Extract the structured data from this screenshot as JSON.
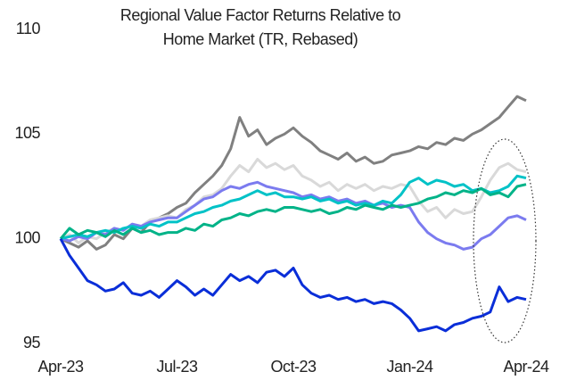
{
  "chart_data": {
    "type": "line",
    "title": [
      "Regional Value Factor Returns Relative to",
      "Home Market (TR, Rebased)"
    ],
    "categories": [
      "Apr-23",
      null,
      null,
      null,
      null,
      null,
      null,
      null,
      null,
      null,
      null,
      null,
      null,
      "Jul-23",
      null,
      null,
      null,
      null,
      null,
      null,
      null,
      null,
      null,
      null,
      null,
      null,
      "Oct-23",
      null,
      null,
      null,
      null,
      null,
      null,
      null,
      null,
      null,
      null,
      null,
      null,
      "Jan-24",
      null,
      null,
      null,
      null,
      null,
      null,
      null,
      null,
      null,
      null,
      null,
      null,
      "Apr-24"
    ],
    "series": [
      {
        "color": "#808080",
        "values": [
          100,
          99.8,
          99.6,
          99.9,
          99.5,
          99.7,
          100.2,
          100.0,
          100.5,
          100.3,
          100.8,
          101.0,
          101.2,
          101.5,
          101.7,
          102.2,
          102.6,
          103.0,
          103.5,
          104.3,
          105.8,
          104.9,
          105.2,
          104.5,
          104.8,
          105.0,
          105.3,
          104.9,
          104.6,
          104.2,
          104.0,
          103.8,
          104.1,
          103.7,
          103.9,
          103.6,
          103.7,
          104.0,
          104.1,
          104.2,
          104.4,
          104.3,
          104.6,
          104.5,
          104.8,
          104.7,
          105.0,
          105.2,
          105.5,
          105.8,
          106.3,
          106.8,
          106.6
        ]
      },
      {
        "color": "#d9d9d9",
        "values": [
          100,
          100.2,
          99.8,
          100.1,
          100.0,
          100.3,
          100.5,
          100.4,
          100.7,
          100.6,
          100.9,
          101.0,
          101.1,
          101.0,
          101.4,
          101.6,
          102.0,
          102.1,
          102.4,
          103.0,
          103.5,
          103.2,
          103.8,
          103.4,
          103.6,
          103.3,
          103.5,
          103.0,
          102.8,
          102.5,
          102.7,
          102.3,
          102.6,
          102.4,
          102.6,
          102.3,
          102.5,
          102.4,
          102.6,
          102.5,
          101.8,
          101.3,
          101.5,
          101.0,
          101.4,
          101.2,
          101.3,
          102.0,
          102.8,
          103.4,
          103.6,
          103.3,
          103.2
        ]
      },
      {
        "color": "#7b7bef",
        "values": [
          100,
          99.9,
          100.1,
          100.0,
          100.3,
          100.2,
          100.5,
          100.4,
          100.7,
          100.6,
          100.8,
          100.9,
          101.0,
          101.0,
          101.3,
          101.6,
          101.9,
          102.0,
          102.3,
          102.5,
          102.4,
          102.6,
          102.7,
          102.5,
          102.4,
          102.3,
          102.2,
          102.0,
          102.1,
          101.9,
          102.0,
          101.8,
          101.9,
          101.7,
          101.8,
          101.6,
          101.7,
          101.5,
          101.6,
          101.5,
          100.8,
          100.3,
          100.0,
          99.8,
          99.7,
          99.5,
          99.6,
          100.0,
          100.2,
          100.6,
          101.0,
          101.1,
          100.9
        ]
      },
      {
        "color": "#00c2c7",
        "values": [
          100,
          100.1,
          100.2,
          100.1,
          100.3,
          100.4,
          100.3,
          100.5,
          100.6,
          100.5,
          100.7,
          100.6,
          100.8,
          100.8,
          101.0,
          101.2,
          101.3,
          101.5,
          101.6,
          101.8,
          101.9,
          102.1,
          102.3,
          102.1,
          102.2,
          102.0,
          102.0,
          101.9,
          102.0,
          101.8,
          101.9,
          101.7,
          101.8,
          101.6,
          101.7,
          101.6,
          101.8,
          101.7,
          102.1,
          102.7,
          102.9,
          102.6,
          102.8,
          102.7,
          102.5,
          102.6,
          102.3,
          102.4,
          102.2,
          102.3,
          102.5,
          103.0,
          102.9
        ]
      },
      {
        "color": "#00b388",
        "values": [
          100,
          100.5,
          100.2,
          100.4,
          100.3,
          100.1,
          100.4,
          100.2,
          100.5,
          100.3,
          100.4,
          100.2,
          100.3,
          100.3,
          100.5,
          100.4,
          100.7,
          100.6,
          100.9,
          101.0,
          101.2,
          101.1,
          101.3,
          101.4,
          101.3,
          101.5,
          101.5,
          101.4,
          101.3,
          101.4,
          101.2,
          101.3,
          101.5,
          101.4,
          101.6,
          101.5,
          101.4,
          101.6,
          101.5,
          101.6,
          101.7,
          101.9,
          102.0,
          102.2,
          102.1,
          102.3,
          102.2,
          102.4,
          102.1,
          102.2,
          102.0,
          102.5,
          102.6
        ]
      },
      {
        "color": "#0a2ed8",
        "values": [
          100,
          99.2,
          98.6,
          98.0,
          97.8,
          97.5,
          97.6,
          97.9,
          97.4,
          97.3,
          97.5,
          97.2,
          97.6,
          98.0,
          97.7,
          97.3,
          97.6,
          97.3,
          97.8,
          98.3,
          98.0,
          98.2,
          97.9,
          98.4,
          98.5,
          98.2,
          98.6,
          97.8,
          97.4,
          97.2,
          97.3,
          97.1,
          97.2,
          97.0,
          97.1,
          96.9,
          97.0,
          96.9,
          96.6,
          96.2,
          95.6,
          95.7,
          95.8,
          95.6,
          95.9,
          96.0,
          96.2,
          96.3,
          96.5,
          97.7,
          97.0,
          97.2,
          97.1
        ]
      }
    ],
    "ylim": [
      95,
      110
    ],
    "yticks": [
      95,
      100,
      105,
      110
    ],
    "grid": false
  }
}
